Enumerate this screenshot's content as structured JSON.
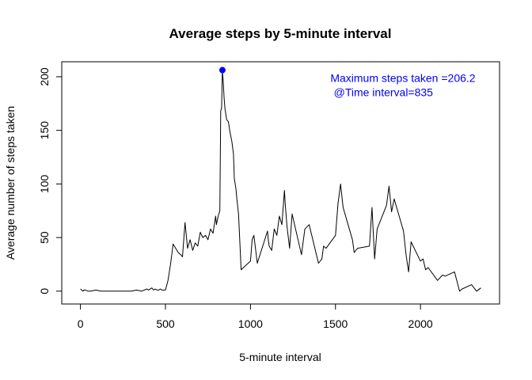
{
  "chart_data": {
    "type": "line",
    "title": "Average steps by 5-minute interval",
    "xlabel": "5-minute interval",
    "ylabel": "Average number of steps taken",
    "xlim": [
      -110,
      2465
    ],
    "ylim": [
      -12,
      214
    ],
    "x_ticks": [
      0,
      500,
      1000,
      1500,
      2000
    ],
    "x_tick_labels": [
      "0",
      "500",
      "1000",
      "1500",
      "2000"
    ],
    "y_ticks": [
      0,
      50,
      100,
      150,
      200
    ],
    "y_tick_labels": [
      "0",
      "50",
      "100",
      "150",
      "200"
    ],
    "grid": false,
    "line_color": "#000000",
    "series": [
      {
        "x": [
          0,
          15,
          20,
          30,
          45,
          60,
          90,
          120,
          150,
          180,
          210,
          240,
          270,
          300,
          330,
          360,
          390,
          400,
          420,
          430,
          440,
          450,
          460,
          470,
          480,
          500,
          515,
          530,
          545,
          560,
          575,
          590,
          600,
          615,
          630,
          645,
          660,
          675,
          690,
          705,
          720,
          735,
          750,
          765,
          780,
          795,
          800,
          810,
          820,
          825,
          830,
          835,
          840,
          845,
          850,
          860,
          870,
          880,
          890,
          900,
          905,
          915,
          920,
          930,
          945,
          1000,
          1010,
          1020,
          1040,
          1100,
          1105,
          1110,
          1125,
          1140,
          1155,
          1170,
          1185,
          1200,
          1205,
          1215,
          1230,
          1245,
          1300,
          1320,
          1345,
          1400,
          1420,
          1430,
          1445,
          1500,
          1515,
          1530,
          1545,
          1600,
          1610,
          1630,
          1700,
          1715,
          1730,
          1745,
          1800,
          1815,
          1830,
          1845,
          1900,
          1915,
          1930,
          1945,
          2000,
          2015,
          2030,
          2045,
          2100,
          2130,
          2145,
          2200,
          2230,
          2245,
          2300,
          2330,
          2355
        ],
        "y": [
          2,
          0,
          1,
          1,
          0,
          0,
          1,
          0,
          0,
          0,
          0,
          0,
          0,
          0,
          1,
          0,
          2,
          1,
          3,
          1,
          2,
          1,
          1,
          2,
          1,
          1,
          10,
          25,
          44,
          40,
          36,
          34,
          32,
          64,
          40,
          48,
          38,
          45,
          42,
          55,
          50,
          52,
          48,
          58,
          54,
          70,
          62,
          70,
          75,
          168,
          171,
          206,
          195,
          180,
          170,
          160,
          158,
          148,
          140,
          128,
          105,
          95,
          86,
          72,
          20,
          28,
          48,
          52,
          26,
          56,
          48,
          42,
          38,
          58,
          52,
          70,
          62,
          94,
          80,
          60,
          40,
          72,
          34,
          58,
          62,
          26,
          30,
          42,
          40,
          52,
          82,
          100,
          78,
          48,
          36,
          40,
          42,
          78,
          30,
          58,
          80,
          98,
          74,
          86,
          56,
          34,
          18,
          46,
          28,
          30,
          20,
          22,
          10,
          15,
          14,
          18,
          0,
          2,
          6,
          0,
          3
        ],
        "color": "#000000"
      }
    ],
    "max_point": {
      "x": 835,
      "y": 206.2,
      "color": "#0000ff"
    },
    "annotations": [
      {
        "text": "Maximum steps taken =206.2",
        "x": 1470,
        "y": 195,
        "color": "#0000ff"
      },
      {
        "text": "@Time interval=835",
        "x": 1490,
        "y": 182,
        "color": "#0000ff"
      }
    ]
  }
}
